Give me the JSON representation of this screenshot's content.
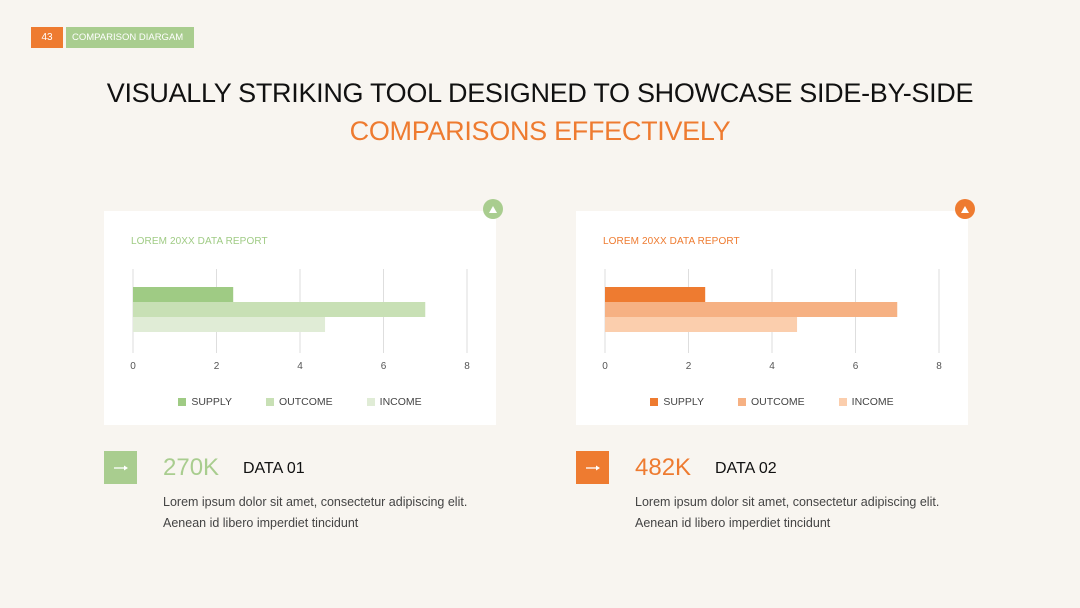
{
  "slide_tag": {
    "number": "43",
    "label": "COMPARISON DIARGAM"
  },
  "headline": {
    "part1": "VISUALLY STRIKING TOOL DESIGNED TO SHOWCASE SIDE-BY-SIDE ",
    "highlight": "COMPARISONS EFFECTIVELY"
  },
  "colors": {
    "background": "#f8f5f0",
    "green_dark": "#9fcb84",
    "green_mid": "#c8e0b5",
    "green_light": "#e0ecd6",
    "orange_dark": "#ee7b30",
    "orange_mid": "#f6b183",
    "orange_light": "#fbcead"
  },
  "chart_data": [
    {
      "type": "bar",
      "orientation": "horizontal",
      "title": "LOREM 20XX DATA REPORT",
      "series": [
        {
          "name": "SUPPLY",
          "values": [
            2.4
          ]
        },
        {
          "name": "OUTCOME",
          "values": [
            7
          ]
        },
        {
          "name": "INCOME",
          "values": [
            4.6
          ]
        }
      ],
      "xlim": [
        0,
        8
      ],
      "x_ticks": [
        "0",
        "2",
        "4",
        "6",
        "8"
      ],
      "grid": true,
      "legend": "bottom-center",
      "colors": [
        "#9fcb84",
        "#c8e0b5",
        "#e0ecd6"
      ],
      "title_color": "#9fcb84"
    },
    {
      "type": "bar",
      "orientation": "horizontal",
      "title": "LOREM 20XX DATA REPORT",
      "series": [
        {
          "name": "SUPPLY",
          "values": [
            2.4
          ]
        },
        {
          "name": "OUTCOME",
          "values": [
            7
          ]
        },
        {
          "name": "INCOME",
          "values": [
            4.6
          ]
        }
      ],
      "xlim": [
        0,
        8
      ],
      "x_ticks": [
        "0",
        "2",
        "4",
        "6",
        "8"
      ],
      "grid": true,
      "legend": "bottom-center",
      "colors": [
        "#ee7b30",
        "#f6b183",
        "#fbcead"
      ],
      "title_color": "#ee7b30"
    }
  ],
  "stats": [
    {
      "value": "270K",
      "label": "DATA 01",
      "desc_line1": "Lorem ipsum dolor sit amet, consectetur adipiscing elit.",
      "desc_line2": "Aenean id libero imperdiet tincidunt"
    },
    {
      "value": "482K",
      "label": "DATA 02",
      "desc_line1": "Lorem ipsum dolor sit amet, consectetur adipiscing elit.",
      "desc_line2": "Aenean id libero imperdiet tincidunt"
    }
  ],
  "icons": {
    "badge": "up-triangle-icon",
    "arrow": "right-arrow-icon"
  }
}
